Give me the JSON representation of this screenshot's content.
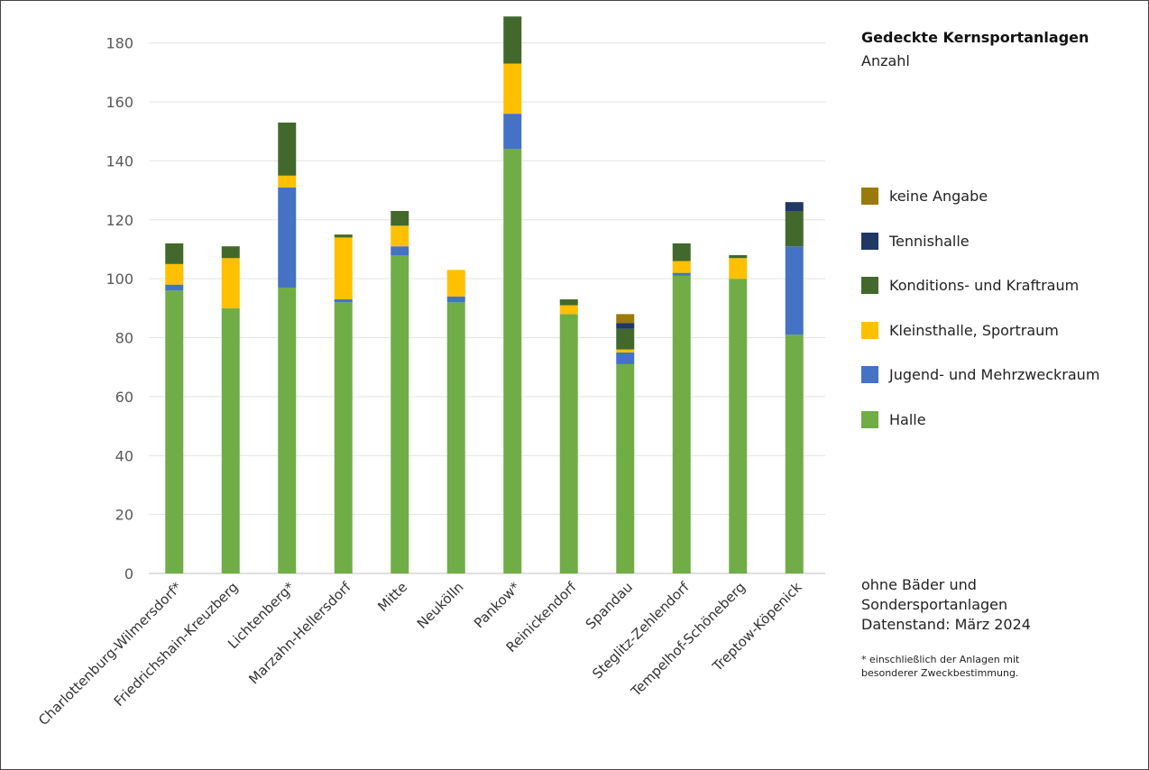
{
  "chart_data": {
    "type": "bar",
    "stacked": true,
    "title": "Gedeckte Kernsportanlagen",
    "ylabel": "Anzahl",
    "ylim": [
      0,
      190
    ],
    "yticks": [
      0,
      20,
      40,
      60,
      80,
      100,
      120,
      140,
      160,
      180
    ],
    "grid": true,
    "legend_position": "right",
    "categories": [
      "Charlottenburg-Wilmersdorf*",
      "Friedrichshain-Kreuzberg",
      "Lichtenberg*",
      "Marzahn-Hellersdorf",
      "Mitte",
      "Neukölln",
      "Pankow*",
      "Reinickendorf",
      "Spandau",
      "Steglitz-Zehlendorf",
      "Tempelhof-Schöneberg",
      "Treptow-Köpenick"
    ],
    "series": [
      {
        "name": "Halle",
        "color": "#70ad47",
        "values": [
          96,
          90,
          97,
          92,
          108,
          92,
          144,
          88,
          71,
          101,
          100,
          81
        ]
      },
      {
        "name": "Jugend- und Mehrzweckraum",
        "color": "#4472c4",
        "values": [
          2,
          0,
          34,
          1,
          3,
          2,
          12,
          0,
          4,
          1,
          0,
          30
        ]
      },
      {
        "name": "Kleinsthalle, Sportraum",
        "color": "#ffc000",
        "values": [
          7,
          17,
          4,
          21,
          7,
          9,
          17,
          3,
          1,
          4,
          7,
          0
        ]
      },
      {
        "name": "Konditions- und Kraftraum",
        "color": "#43682b",
        "values": [
          7,
          4,
          18,
          1,
          5,
          0,
          16,
          2,
          7,
          6,
          1,
          12
        ]
      },
      {
        "name": "Tennishalle",
        "color": "#1f3864",
        "values": [
          0,
          0,
          0,
          0,
          0,
          0,
          0,
          0,
          2,
          0,
          0,
          3
        ]
      },
      {
        "name": "keine Angabe",
        "color": "#9c7a0a",
        "values": [
          0,
          0,
          0,
          0,
          0,
          0,
          0,
          0,
          3,
          0,
          0,
          0
        ]
      }
    ]
  },
  "legend_order": [
    "keine Angabe",
    "Tennishalle",
    "Konditions- und Kraftraum",
    "Kleinsthalle, Sportraum",
    "Jugend- und Mehrzweckraum",
    "Halle"
  ],
  "notes": {
    "line1": "ohne Bäder und",
    "line2": "Sondersportanlagen",
    "line3": "Datenstand: März 2024",
    "footnote": "* einschließlich der Anlagen mit besonderer Zweckbestimmung."
  }
}
